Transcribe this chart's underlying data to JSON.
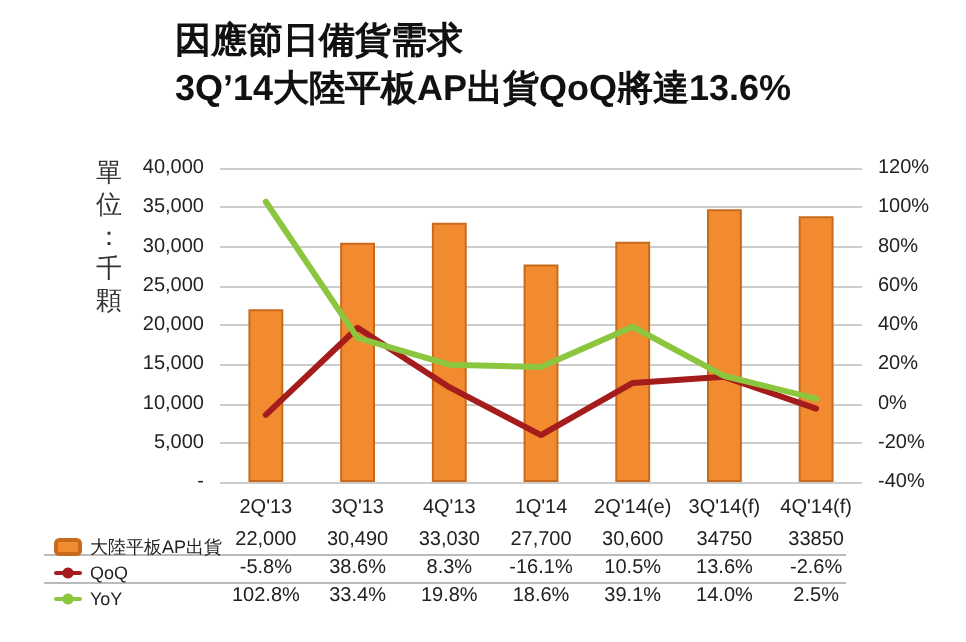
{
  "chart_data": {
    "type": "bar",
    "title": "因應節日備貨需求\n3Q’14大陸平板AP出貨QoQ將達13.6%",
    "ylabel": "單位：千顆",
    "categories": [
      "2Q'13",
      "3Q'13",
      "4Q'13",
      "1Q'14",
      "2Q'14(e)",
      "3Q'14(f)",
      "4Q'14(f)"
    ],
    "series": [
      {
        "name": "大陸平板AP出貨",
        "color": "#f28a30",
        "values": [
          22000,
          30490,
          33030,
          27700,
          30600,
          34750,
          33850
        ],
        "value_labels": [
          "22,000",
          "30,490",
          "33,030",
          "27,700",
          "30,600",
          "34750",
          "33850"
        ]
      },
      {
        "name": "QoQ",
        "type": "line",
        "axis": "y2",
        "color": "#a51c1c",
        "values": [
          -5.8,
          38.6,
          8.3,
          -16.1,
          10.5,
          13.6,
          -2.6
        ],
        "value_labels": [
          "-5.8%",
          "38.6%",
          "8.3%",
          "-16.1%",
          "10.5%",
          "13.6%",
          "-2.6%"
        ]
      },
      {
        "name": "YoY",
        "type": "line",
        "axis": "y2",
        "color": "#8cc63f",
        "values": [
          102.8,
          33.4,
          19.8,
          18.6,
          39.1,
          14.0,
          2.5
        ],
        "value_labels": [
          "102.8%",
          "33.4%",
          "19.8%",
          "18.6%",
          "39.1%",
          "14.0%",
          "2.5%"
        ]
      }
    ],
    "ylim": [
      0,
      40000
    ],
    "yticks": [
      {
        "value": 0,
        "label": "-"
      },
      {
        "value": 5000,
        "label": "5,000"
      },
      {
        "value": 10000,
        "label": "10,000"
      },
      {
        "value": 15000,
        "label": "15,000"
      },
      {
        "value": 20000,
        "label": "20,000"
      },
      {
        "value": 25000,
        "label": "25,000"
      },
      {
        "value": 30000,
        "label": "30,000"
      },
      {
        "value": 35000,
        "label": "35,000"
      },
      {
        "value": 40000,
        "label": "40,000"
      }
    ],
    "y2lim": [
      -40,
      120
    ],
    "y2ticks": [
      {
        "value": -40,
        "label": "-40%"
      },
      {
        "value": -20,
        "label": "-20%"
      },
      {
        "value": 0,
        "label": "0%"
      },
      {
        "value": 20,
        "label": "20%"
      },
      {
        "value": 40,
        "label": "40%"
      },
      {
        "value": 60,
        "label": "60%"
      },
      {
        "value": 80,
        "label": "80%"
      },
      {
        "value": 100,
        "label": "100%"
      },
      {
        "value": 120,
        "label": "120%"
      }
    ],
    "grid": "y",
    "legend": "bottom left",
    "marker": "none",
    "line_style": "solid"
  }
}
